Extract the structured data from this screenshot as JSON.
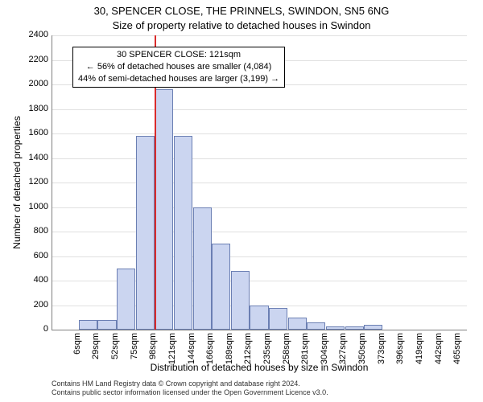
{
  "title_line1": "30, SPENCER CLOSE, THE PRINNELS, SWINDON, SN5 6NG",
  "title_line2": "Size of property relative to detached houses in Swindon",
  "ylabel": "Number of detached properties",
  "xlabel": "Distribution of detached houses by size in Swindon",
  "footer_line1": "Contains HM Land Registry data © Crown copyright and database right 2024.",
  "footer_line2": "Contains public sector information licensed under the Open Government Licence v3.0.",
  "chart": {
    "type": "histogram",
    "background_color": "#ffffff",
    "grid_color": "#e0e0e0",
    "axis_color": "#808080",
    "bar_fill": "#cbd5f0",
    "bar_border": "#6b7fb3",
    "bar_border_width": 1,
    "refline_color": "#d92b2b",
    "refline_x_category_index": 5,
    "ylim": [
      0,
      2400
    ],
    "ytick_step": 200,
    "categories": [
      "6sqm",
      "29sqm",
      "52sqm",
      "75sqm",
      "98sqm",
      "121sqm",
      "144sqm",
      "166sqm",
      "189sqm",
      "212sqm",
      "235sqm",
      "258sqm",
      "281sqm",
      "304sqm",
      "327sqm",
      "350sqm",
      "373sqm",
      "396sqm",
      "419sqm",
      "442sqm",
      "465sqm"
    ],
    "values": [
      0,
      80,
      80,
      500,
      1580,
      1960,
      1580,
      1000,
      700,
      480,
      200,
      180,
      100,
      60,
      25,
      25,
      40,
      0,
      0,
      0,
      0
    ],
    "tick_fontsize": 11,
    "label_fontsize": 12,
    "title_fontsize": 13
  },
  "annotation": {
    "line1": "30 SPENCER CLOSE: 121sqm",
    "line2": "← 56% of detached houses are smaller (4,084)",
    "line3": "44% of semi-detached houses are larger (3,199) →",
    "border_color": "#000000",
    "background": "#ffffff",
    "fontsize": 11
  }
}
